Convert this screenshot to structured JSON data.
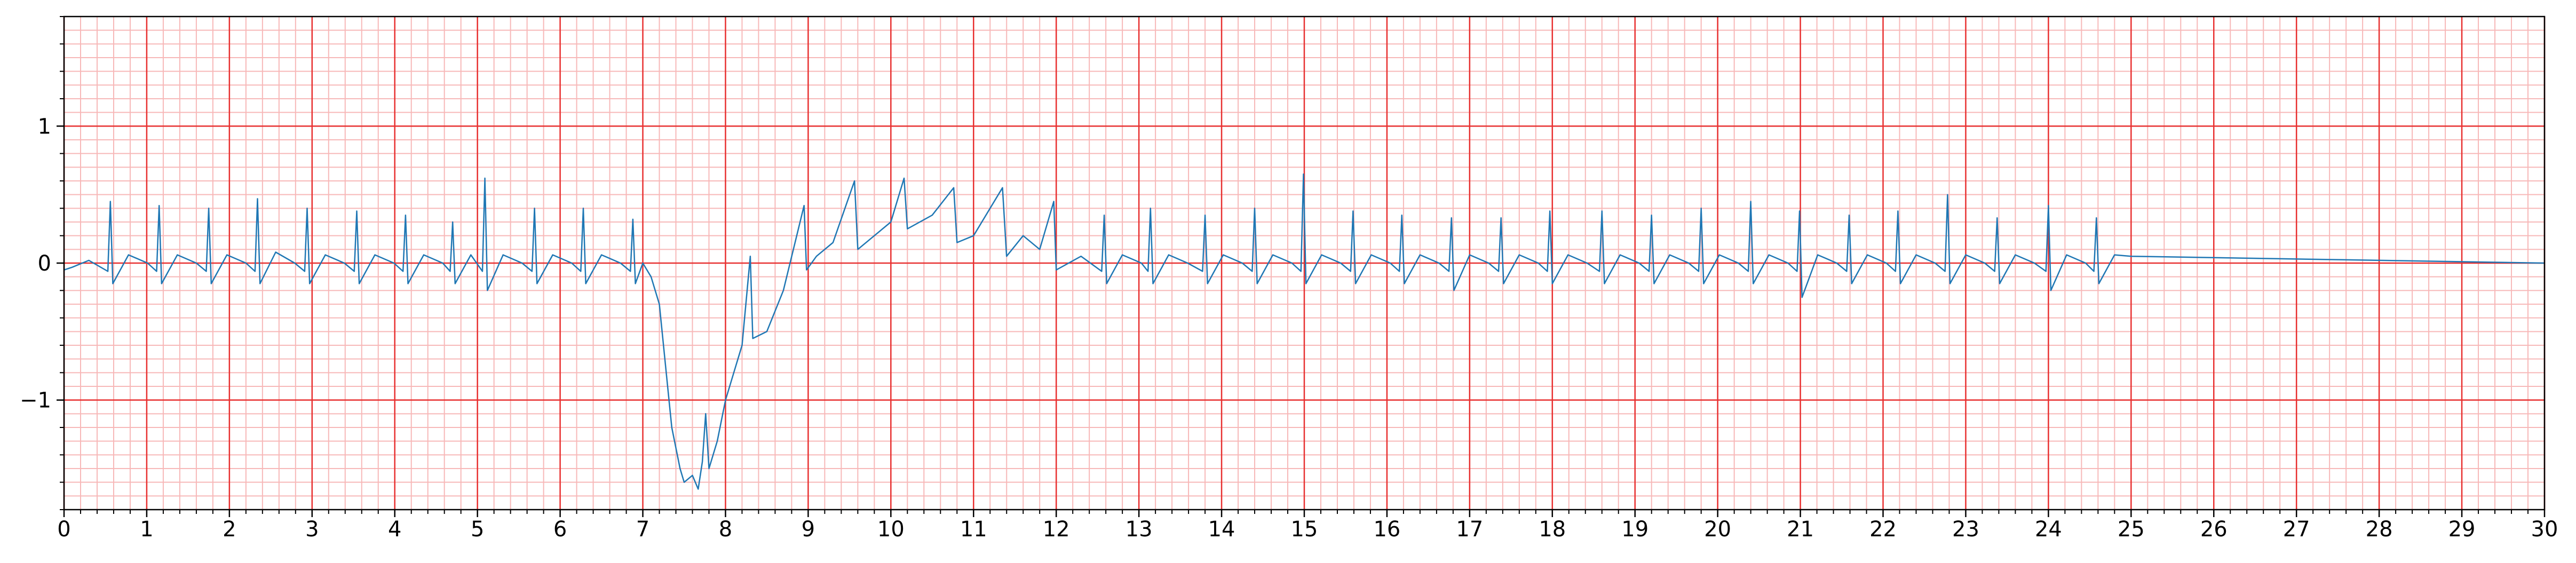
{
  "chart_data": {
    "type": "line",
    "color": "#1f77b4",
    "xlim": [
      0,
      30
    ],
    "ylim": [
      -1.8,
      1.8
    ],
    "xticks": [
      0,
      1,
      2,
      3,
      4,
      5,
      6,
      7,
      8,
      9,
      10,
      11,
      12,
      13,
      14,
      15,
      16,
      17,
      18,
      19,
      20,
      21,
      22,
      23,
      24,
      25,
      26,
      27,
      28,
      29,
      30
    ],
    "yticks": [
      {
        "value": -1,
        "label": "−1"
      },
      0,
      1
    ],
    "grid": true,
    "grid_color": "#e83030",
    "minor_grid": {
      "x_step": 0.2,
      "y_step": 0.1,
      "color": "#f7b8b8"
    },
    "x": [
      0,
      0.1,
      0.3,
      0.53,
      0.56,
      0.59,
      0.78,
      1.01,
      1.12,
      1.15,
      1.18,
      1.37,
      1.6,
      1.72,
      1.75,
      1.78,
      1.97,
      2.2,
      2.31,
      2.34,
      2.37,
      2.56,
      2.79,
      2.91,
      2.94,
      2.97,
      3.16,
      3.39,
      3.51,
      3.54,
      3.57,
      3.76,
      3.99,
      4.1,
      4.13,
      4.16,
      4.35,
      4.58,
      4.67,
      4.7,
      4.73,
      4.92,
      5.06,
      5.09,
      5.12,
      5.31,
      5.54,
      5.66,
      5.69,
      5.72,
      5.91,
      6.14,
      6.25,
      6.28,
      6.31,
      6.5,
      6.73,
      6.85,
      6.88,
      6.91,
      7.0,
      7.1,
      7.2,
      7.3,
      7.35,
      7.45,
      7.5,
      7.6,
      7.67,
      7.72,
      7.76,
      7.8,
      7.9,
      8.0,
      8.1,
      8.2,
      8.3,
      8.33,
      8.5,
      8.7,
      8.95,
      8.98,
      9.1,
      9.3,
      9.56,
      9.6,
      9.8,
      10.0,
      10.16,
      10.2,
      10.5,
      10.76,
      10.8,
      11.0,
      11.35,
      11.4,
      11.6,
      11.8,
      11.97,
      12.0,
      12.3,
      12.55,
      12.58,
      12.61,
      12.8,
      13.03,
      13.11,
      13.14,
      13.17,
      13.36,
      13.59,
      13.77,
      13.8,
      13.83,
      14.02,
      14.25,
      14.37,
      14.4,
      14.43,
      14.62,
      14.85,
      14.96,
      14.99,
      15.02,
      15.21,
      15.44,
      15.56,
      15.59,
      15.62,
      15.81,
      16.04,
      16.15,
      16.18,
      16.21,
      16.4,
      16.63,
      16.75,
      16.78,
      16.81,
      17.0,
      17.23,
      17.35,
      17.38,
      17.41,
      17.6,
      17.83,
      17.94,
      17.97,
      18.0,
      18.19,
      18.42,
      18.57,
      18.6,
      18.63,
      18.82,
      19.05,
      19.17,
      19.2,
      19.23,
      19.42,
      19.65,
      19.77,
      19.8,
      19.83,
      20.02,
      20.25,
      20.37,
      20.4,
      20.43,
      20.62,
      20.85,
      20.96,
      20.99,
      21.02,
      21.21,
      21.44,
      21.56,
      21.59,
      21.62,
      21.81,
      22.04,
      22.15,
      22.18,
      22.21,
      22.4,
      22.63,
      22.75,
      22.78,
      22.81,
      23.0,
      23.23,
      23.35,
      23.38,
      23.41,
      23.6,
      23.83,
      23.97,
      24.0,
      24.03,
      24.22,
      24.45,
      24.55,
      24.58,
      24.61,
      24.8,
      25.0,
      30
    ],
    "values": [
      -0.05,
      -0.03,
      0.02,
      -0.06,
      0.45,
      -0.15,
      0.06,
      0,
      -0.06,
      0.42,
      -0.15,
      0.06,
      0,
      -0.06,
      0.4,
      -0.15,
      0.06,
      0,
      -0.06,
      0.47,
      -0.15,
      0.08,
      0,
      -0.06,
      0.4,
      -0.15,
      0.06,
      0,
      -0.06,
      0.38,
      -0.15,
      0.06,
      0,
      -0.06,
      0.35,
      -0.15,
      0.06,
      0,
      -0.06,
      0.3,
      -0.15,
      0.06,
      -0.06,
      0.62,
      -0.2,
      0.06,
      0,
      -0.06,
      0.4,
      -0.15,
      0.06,
      0,
      -0.06,
      0.4,
      -0.15,
      0.06,
      0,
      -0.06,
      0.32,
      -0.15,
      0,
      -0.1,
      -0.3,
      -0.9,
      -1.2,
      -1.5,
      -1.6,
      -1.55,
      -1.65,
      -1.45,
      -1.1,
      -1.5,
      -1.3,
      -1.0,
      -0.8,
      -0.6,
      0.05,
      -0.55,
      -0.5,
      -0.2,
      0.42,
      -0.05,
      0.05,
      0.15,
      0.6,
      0.1,
      0.2,
      0.3,
      0.62,
      0.25,
      0.35,
      0.55,
      0.15,
      0.2,
      0.55,
      0.05,
      0.2,
      0.1,
      0.45,
      -0.05,
      0.05,
      -0.06,
      0.35,
      -0.15,
      0.06,
      0,
      -0.06,
      0.4,
      -0.15,
      0.06,
      0,
      -0.06,
      0.35,
      -0.15,
      0.06,
      0,
      -0.06,
      0.4,
      -0.15,
      0.06,
      0,
      -0.06,
      0.65,
      -0.15,
      0.06,
      0,
      -0.06,
      0.38,
      -0.15,
      0.06,
      0,
      -0.06,
      0.35,
      -0.15,
      0.06,
      0,
      -0.06,
      0.33,
      -0.2,
      0.06,
      0,
      -0.06,
      0.33,
      -0.15,
      0.06,
      0,
      -0.06,
      0.38,
      -0.15,
      0.06,
      0,
      -0.06,
      0.38,
      -0.15,
      0.06,
      0,
      -0.06,
      0.35,
      -0.15,
      0.06,
      0,
      -0.06,
      0.4,
      -0.15,
      0.06,
      0,
      -0.06,
      0.45,
      -0.15,
      0.06,
      0,
      -0.06,
      0.38,
      -0.25,
      0.06,
      0,
      -0.06,
      0.35,
      -0.15,
      0.06,
      0,
      -0.06,
      0.38,
      -0.15,
      0.06,
      0,
      -0.06,
      0.5,
      -0.15,
      0.06,
      0,
      -0.06,
      0.33,
      -0.15,
      0.06,
      0,
      -0.06,
      0.42,
      -0.2,
      0.06,
      0,
      -0.06,
      0.33,
      -0.15,
      0.06,
      0.05,
      0
    ]
  }
}
